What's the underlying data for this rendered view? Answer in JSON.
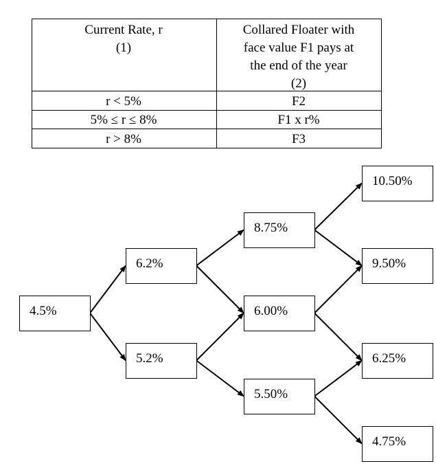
{
  "table": {
    "header": [
      [
        "Current Rate, r",
        "(1)"
      ],
      [
        "Collared Floater with",
        "face value F1 pays at",
        "the end of the year",
        "(2)"
      ]
    ],
    "rows": [
      [
        "r < 5%",
        "F2"
      ],
      [
        "5%  ≤ r ≤ 8%",
        "F1 x r%"
      ],
      [
        "r > 8%",
        "F3"
      ]
    ]
  },
  "nodes": [
    {
      "label": "4.5%"
    },
    {
      "label": "6.2%"
    },
    {
      "label": "5.2%"
    },
    {
      "label": "8.75%"
    },
    {
      "label": "6.00%"
    },
    {
      "label": "5.50%"
    },
    {
      "label": "10.50%"
    },
    {
      "label": "9.50%"
    },
    {
      "label": "6.25%"
    },
    {
      "label": "4.75%"
    }
  ]
}
